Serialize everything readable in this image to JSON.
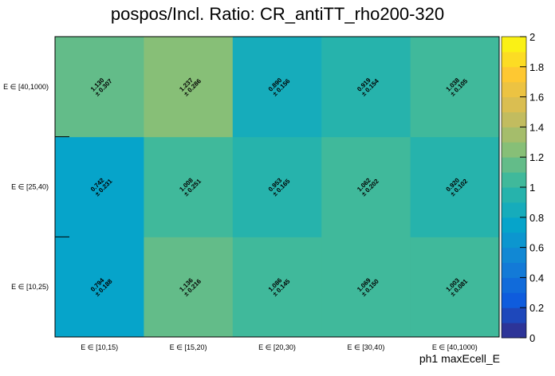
{
  "chart_data": {
    "type": "heatmap",
    "title": "pospos/Incl. Ratio: CR_antiTT_rho200-320",
    "xlabel": "ph1 maxEcell_E",
    "ylabel": "",
    "x_categories": [
      "E ∈ [10,15)",
      "E ∈ [15,20)",
      "E ∈ [20,30)",
      "E ∈ [30,40)",
      "E ∈ [40,1000)"
    ],
    "y_categories": [
      "E ∈ [10,25)",
      "E ∈ [25,40)",
      "E ∈ [40,1000)"
    ],
    "values": [
      [
        0.794,
        1.136,
        1.086,
        1.069,
        1.003
      ],
      [
        0.742,
        1.008,
        0.953,
        1.062,
        0.92
      ],
      [
        1.13,
        1.237,
        0.89,
        0.919,
        1.038
      ]
    ],
    "errors": [
      [
        0.188,
        0.216,
        0.145,
        0.15,
        0.081
      ],
      [
        0.231,
        0.251,
        0.165,
        0.202,
        0.102
      ],
      [
        0.307,
        0.286,
        0.156,
        0.154,
        0.105
      ]
    ],
    "value_labels": [
      [
        "0.794",
        "1.136",
        "1.086",
        "1.069",
        "1.003"
      ],
      [
        "0.742",
        "1.008",
        "0.953",
        "1.062",
        "0.920"
      ],
      [
        "1.130",
        "1.237",
        "0.890",
        "0.919",
        "1.038"
      ]
    ],
    "error_labels": [
      [
        "± 0.188",
        "± 0.216",
        "± 0.145",
        "± 0.150",
        "± 0.081"
      ],
      [
        "± 0.231",
        "± 0.251",
        "± 0.165",
        "± 0.202",
        "± 0.102"
      ],
      [
        "± 0.307",
        "± 0.286",
        "± 0.156",
        "± 0.154",
        "± 0.105"
      ]
    ],
    "zlim": [
      0,
      2
    ],
    "colorbar_ticks": [
      "0",
      "0.2",
      "0.4",
      "0.6",
      "0.8",
      "1",
      "1.2",
      "1.4",
      "1.6",
      "1.8",
      "2"
    ],
    "colormap": [
      "#352a87",
      "#0f5cdd",
      "#1481d6",
      "#06a4ca",
      "#2eb7a4",
      "#87bf77",
      "#d1bb59",
      "#fec832",
      "#f9fb0e"
    ]
  }
}
